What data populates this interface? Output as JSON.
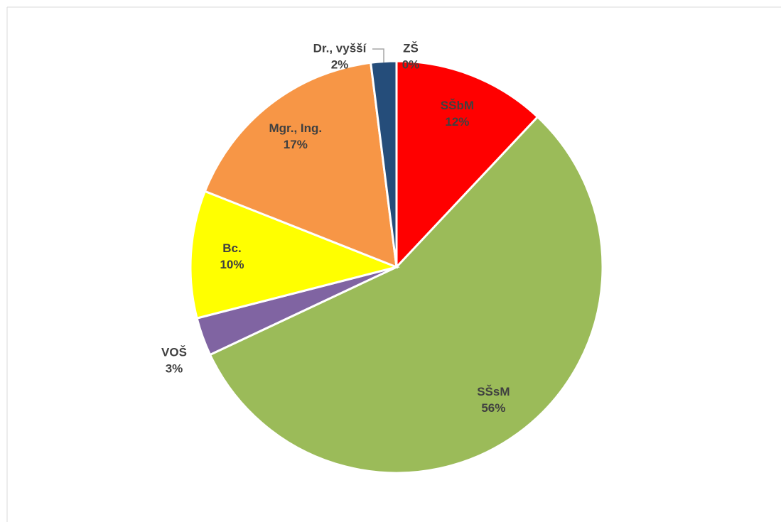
{
  "chart_data": {
    "type": "pie",
    "categories": [
      "ZŠ",
      "SŠbM",
      "SŠsM",
      "VOŠ",
      "Bc.",
      "Mgr., Ing.",
      "Dr., vyšší"
    ],
    "values": [
      0,
      12,
      56,
      3,
      10,
      17,
      2
    ],
    "value_labels": [
      "0%",
      "12%",
      "56%",
      "3%",
      "10%",
      "17%",
      "2%"
    ],
    "colors": [
      "#4f81bd",
      "#ff0000",
      "#9bbb59",
      "#8064a2",
      "#ffff00",
      "#f79646",
      "#254d7a"
    ]
  }
}
